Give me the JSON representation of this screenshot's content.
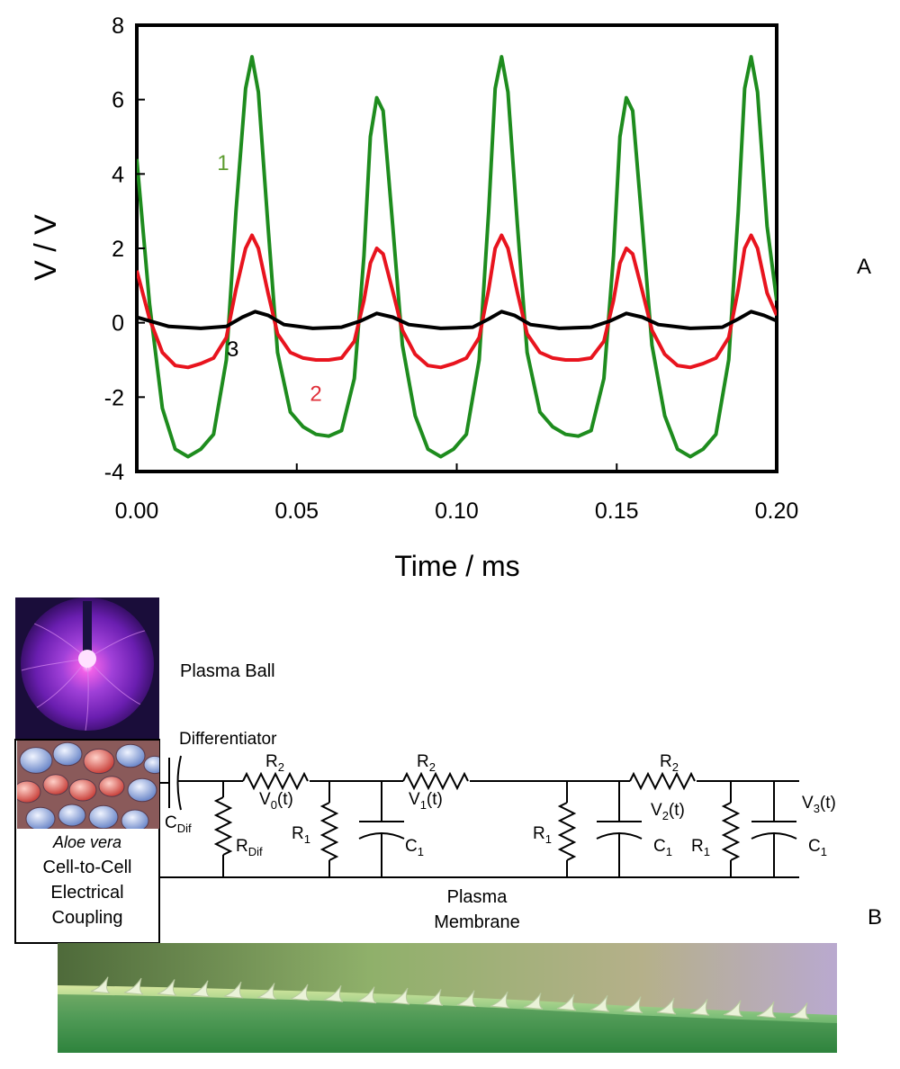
{
  "panel_a_label": "A",
  "panel_b_label": "B",
  "chart_data": {
    "type": "line",
    "xlabel": "Time / ms",
    "ylabel": "V / V",
    "xlim": [
      0,
      0.2
    ],
    "ylim": [
      -4,
      8
    ],
    "x_ticks": [
      "0.00",
      "0.05",
      "0.10",
      "0.15",
      "0.20"
    ],
    "x_tick_values": [
      0,
      0.05,
      0.1,
      0.15,
      0.2
    ],
    "y_ticks": [
      "-4",
      "-2",
      "0",
      "2",
      "4",
      "6",
      "8"
    ],
    "y_tick_values": [
      -4,
      -2,
      0,
      2,
      4,
      6,
      8
    ],
    "grid": false,
    "annotations": [
      {
        "text": "1",
        "x": 0.027,
        "y": 4.1,
        "color": "#5d9c30"
      },
      {
        "text": "2",
        "x": 0.056,
        "y": -2.1,
        "color": "#e0303a"
      },
      {
        "text": "3",
        "x": 0.03,
        "y": -0.9,
        "color": "#000000"
      }
    ],
    "series": [
      {
        "color": "#1e8c1e",
        "x": [
          0,
          0.004,
          0.008,
          0.012,
          0.016,
          0.02,
          0.024,
          0.028,
          0.031,
          0.034,
          0.036,
          0.038,
          0.041,
          0.044,
          0.048,
          0.052,
          0.056,
          0.06,
          0.064,
          0.068,
          0.071,
          0.073,
          0.075,
          0.077,
          0.08,
          0.083,
          0.087,
          0.091,
          0.095,
          0.099,
          0.103,
          0.107,
          0.11,
          0.112,
          0.114,
          0.116,
          0.119,
          0.122,
          0.126,
          0.13,
          0.134,
          0.138,
          0.142,
          0.146,
          0.149,
          0.151,
          0.153,
          0.155,
          0.158,
          0.161,
          0.165,
          0.169,
          0.173,
          0.177,
          0.181,
          0.185,
          0.188,
          0.19,
          0.192,
          0.194,
          0.197,
          0.2
        ],
        "y": [
          4.4,
          0.5,
          -2.3,
          -3.4,
          -3.6,
          -3.4,
          -3.0,
          -1.0,
          3.0,
          6.3,
          7.15,
          6.2,
          2.6,
          -0.8,
          -2.4,
          -2.8,
          -3.0,
          -3.05,
          -2.9,
          -1.5,
          1.8,
          5.0,
          6.05,
          5.7,
          2.6,
          -0.6,
          -2.5,
          -3.4,
          -3.6,
          -3.4,
          -3.0,
          -1.0,
          3.0,
          6.3,
          7.15,
          6.2,
          2.6,
          -0.8,
          -2.4,
          -2.8,
          -3.0,
          -3.05,
          -2.9,
          -1.5,
          1.8,
          5.0,
          6.05,
          5.7,
          2.6,
          -0.6,
          -2.5,
          -3.4,
          -3.6,
          -3.4,
          -3.0,
          -1.0,
          3.0,
          6.3,
          7.15,
          6.2,
          2.6,
          0.6
        ]
      },
      {
        "color": "#e8141e",
        "x": [
          0,
          0.004,
          0.008,
          0.012,
          0.016,
          0.02,
          0.024,
          0.028,
          0.031,
          0.034,
          0.036,
          0.038,
          0.041,
          0.044,
          0.048,
          0.052,
          0.056,
          0.06,
          0.064,
          0.068,
          0.071,
          0.073,
          0.075,
          0.077,
          0.08,
          0.083,
          0.087,
          0.091,
          0.095,
          0.099,
          0.103,
          0.107,
          0.11,
          0.112,
          0.114,
          0.116,
          0.119,
          0.122,
          0.126,
          0.13,
          0.134,
          0.138,
          0.142,
          0.146,
          0.149,
          0.151,
          0.153,
          0.155,
          0.158,
          0.161,
          0.165,
          0.169,
          0.173,
          0.177,
          0.181,
          0.185,
          0.188,
          0.19,
          0.192,
          0.194,
          0.197,
          0.2
        ],
        "y": [
          1.4,
          0.1,
          -0.8,
          -1.15,
          -1.2,
          -1.1,
          -0.95,
          -0.4,
          0.9,
          2.0,
          2.35,
          2.0,
          0.8,
          -0.3,
          -0.8,
          -0.95,
          -1.0,
          -1.0,
          -0.95,
          -0.5,
          0.6,
          1.6,
          2.0,
          1.85,
          0.85,
          -0.2,
          -0.85,
          -1.15,
          -1.2,
          -1.1,
          -0.95,
          -0.4,
          0.9,
          2.0,
          2.35,
          2.0,
          0.8,
          -0.3,
          -0.8,
          -0.95,
          -1.0,
          -1.0,
          -0.95,
          -0.5,
          0.6,
          1.6,
          2.0,
          1.85,
          0.85,
          -0.2,
          -0.85,
          -1.15,
          -1.2,
          -1.1,
          -0.95,
          -0.4,
          0.9,
          2.0,
          2.35,
          2.0,
          0.8,
          0.2
        ]
      },
      {
        "color": "#000000",
        "x": [
          0,
          0.01,
          0.02,
          0.028,
          0.033,
          0.037,
          0.041,
          0.046,
          0.055,
          0.064,
          0.07,
          0.075,
          0.08,
          0.085,
          0.095,
          0.105,
          0.11,
          0.114,
          0.118,
          0.123,
          0.132,
          0.142,
          0.148,
          0.153,
          0.158,
          0.163,
          0.173,
          0.183,
          0.188,
          0.192,
          0.196,
          0.2
        ],
        "y": [
          0.15,
          -0.1,
          -0.15,
          -0.1,
          0.15,
          0.3,
          0.2,
          -0.05,
          -0.15,
          -0.12,
          0.05,
          0.25,
          0.15,
          -0.05,
          -0.15,
          -0.12,
          0.1,
          0.3,
          0.2,
          -0.05,
          -0.15,
          -0.12,
          0.05,
          0.25,
          0.15,
          -0.05,
          -0.15,
          -0.12,
          0.1,
          0.3,
          0.2,
          0.05
        ]
      }
    ]
  },
  "diagram": {
    "plasma_ball_label": "Plasma Ball",
    "differentiator_label": "Differentiator",
    "aloe_italic": "Aloe vera",
    "aloe_line2": "Cell-to-Cell",
    "aloe_line3": "Electrical",
    "aloe_line4": "Coupling",
    "membrane_line1": "Plasma",
    "membrane_line2": "Membrane",
    "labels": {
      "r2a": "R",
      "r2a_sub": "2",
      "r2b": "R",
      "r2b_sub": "2",
      "r2c": "R",
      "r2c_sub": "2",
      "cdif": "C",
      "cdif_sub": "Dif",
      "rdif": "R",
      "rdif_sub": "Dif",
      "r1a": "R",
      "r1a_sub": "1",
      "r1b": "R",
      "r1b_sub": "1",
      "r1c": "R",
      "r1c_sub": "1",
      "c1a": "C",
      "c1a_sub": "1",
      "c1b": "C",
      "c1b_sub": "1",
      "c1c": "C",
      "c1c_sub": "1",
      "v0": "V",
      "v0_sub": "0",
      "v0_t": "(t)",
      "v1": "V",
      "v1_sub": "1",
      "v1_t": "(t)",
      "v2": "V",
      "v2_sub": "2",
      "v2_t": "(t)",
      "v3": "V",
      "v3_sub": "3",
      "v3_t": "(t)"
    }
  }
}
